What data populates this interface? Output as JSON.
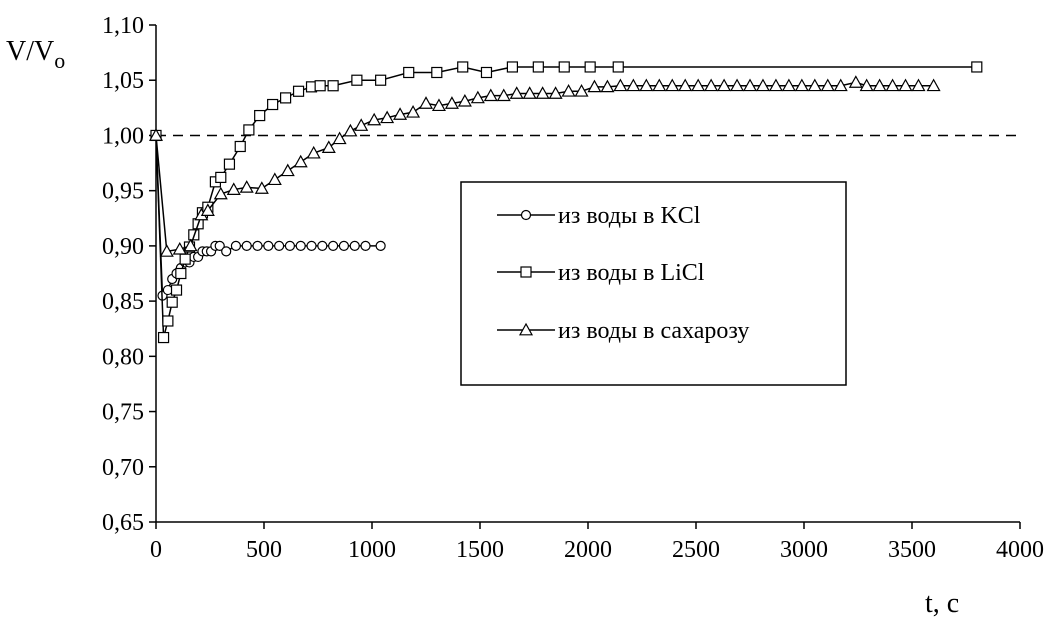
{
  "chart_data": {
    "type": "line",
    "xlabel": "t, c",
    "ylabel_main": "V/V",
    "ylabel_sub": "o",
    "xlim": [
      0,
      4000
    ],
    "ylim": [
      0.65,
      1.1
    ],
    "x_ticks": [
      0,
      500,
      1000,
      1500,
      2000,
      2500,
      3000,
      3500,
      4000
    ],
    "x_tick_labels": [
      "0",
      "500",
      "1000",
      "1500",
      "2000",
      "2500",
      "3000",
      "3500",
      "4000"
    ],
    "y_ticks": [
      0.65,
      0.7,
      0.75,
      0.8,
      0.85,
      0.9,
      0.95,
      1.0,
      1.05,
      1.1
    ],
    "y_tick_labels": [
      "0,65",
      "0,70",
      "0,75",
      "0,80",
      "0,85",
      "0,90",
      "0,95",
      "1,00",
      "1,05",
      "1,10"
    ],
    "reference_line": {
      "y": 1.0,
      "style": "dashed"
    },
    "legend_position": "center-right",
    "series": [
      {
        "name": "из воды в KCl",
        "marker": "circle",
        "points": [
          [
            0,
            1.0
          ],
          [
            30,
            0.855
          ],
          [
            55,
            0.86
          ],
          [
            75,
            0.87
          ],
          [
            95,
            0.875
          ],
          [
            115,
            0.88
          ],
          [
            135,
            0.885
          ],
          [
            155,
            0.885
          ],
          [
            175,
            0.89
          ],
          [
            195,
            0.89
          ],
          [
            215,
            0.895
          ],
          [
            235,
            0.895
          ],
          [
            255,
            0.895
          ],
          [
            275,
            0.9
          ],
          [
            295,
            0.9
          ],
          [
            325,
            0.895
          ],
          [
            370,
            0.9
          ],
          [
            420,
            0.9
          ],
          [
            470,
            0.9
          ],
          [
            520,
            0.9
          ],
          [
            570,
            0.9
          ],
          [
            620,
            0.9
          ],
          [
            670,
            0.9
          ],
          [
            720,
            0.9
          ],
          [
            770,
            0.9
          ],
          [
            820,
            0.9
          ],
          [
            870,
            0.9
          ],
          [
            920,
            0.9
          ],
          [
            970,
            0.9
          ],
          [
            1040,
            0.9
          ]
        ]
      },
      {
        "name": "из воды в LiCl",
        "marker": "square",
        "points": [
          [
            0,
            1.0
          ],
          [
            35,
            0.817
          ],
          [
            55,
            0.832
          ],
          [
            75,
            0.849
          ],
          [
            95,
            0.86
          ],
          [
            115,
            0.875
          ],
          [
            135,
            0.888
          ],
          [
            155,
            0.899
          ],
          [
            175,
            0.91
          ],
          [
            195,
            0.92
          ],
          [
            215,
            0.93
          ],
          [
            240,
            0.935
          ],
          [
            275,
            0.958
          ],
          [
            300,
            0.962
          ],
          [
            340,
            0.974
          ],
          [
            390,
            0.99
          ],
          [
            430,
            1.005
          ],
          [
            480,
            1.018
          ],
          [
            540,
            1.028
          ],
          [
            600,
            1.034
          ],
          [
            660,
            1.04
          ],
          [
            720,
            1.044
          ],
          [
            760,
            1.045
          ],
          [
            820,
            1.045
          ],
          [
            930,
            1.05
          ],
          [
            1040,
            1.05
          ],
          [
            1170,
            1.057
          ],
          [
            1300,
            1.057
          ],
          [
            1420,
            1.062
          ],
          [
            1530,
            1.057
          ],
          [
            1650,
            1.062
          ],
          [
            1770,
            1.062
          ],
          [
            1890,
            1.062
          ],
          [
            2010,
            1.062
          ],
          [
            2140,
            1.062
          ],
          [
            3800,
            1.062
          ]
        ]
      },
      {
        "name": "из воды в сахарозу",
        "marker": "triangle",
        "points": [
          [
            0,
            1.0
          ],
          [
            50,
            0.895
          ],
          [
            110,
            0.897
          ],
          [
            160,
            0.9
          ],
          [
            210,
            0.928
          ],
          [
            240,
            0.932
          ],
          [
            300,
            0.947
          ],
          [
            360,
            0.951
          ],
          [
            420,
            0.953
          ],
          [
            490,
            0.952
          ],
          [
            550,
            0.96
          ],
          [
            610,
            0.968
          ],
          [
            670,
            0.976
          ],
          [
            730,
            0.984
          ],
          [
            800,
            0.989
          ],
          [
            850,
            0.997
          ],
          [
            900,
            1.004
          ],
          [
            950,
            1.009
          ],
          [
            1010,
            1.014
          ],
          [
            1070,
            1.016
          ],
          [
            1130,
            1.019
          ],
          [
            1190,
            1.021
          ],
          [
            1250,
            1.029
          ],
          [
            1310,
            1.027
          ],
          [
            1370,
            1.029
          ],
          [
            1430,
            1.031
          ],
          [
            1490,
            1.034
          ],
          [
            1550,
            1.036
          ],
          [
            1610,
            1.036
          ],
          [
            1670,
            1.038
          ],
          [
            1730,
            1.038
          ],
          [
            1790,
            1.038
          ],
          [
            1850,
            1.038
          ],
          [
            1910,
            1.04
          ],
          [
            1970,
            1.04
          ],
          [
            2030,
            1.044
          ],
          [
            2090,
            1.044
          ],
          [
            2150,
            1.045
          ],
          [
            2210,
            1.045
          ],
          [
            2270,
            1.045
          ],
          [
            2330,
            1.045
          ],
          [
            2390,
            1.045
          ],
          [
            2450,
            1.045
          ],
          [
            2510,
            1.045
          ],
          [
            2570,
            1.045
          ],
          [
            2630,
            1.045
          ],
          [
            2690,
            1.045
          ],
          [
            2750,
            1.045
          ],
          [
            2810,
            1.045
          ],
          [
            2870,
            1.045
          ],
          [
            2930,
            1.045
          ],
          [
            2990,
            1.045
          ],
          [
            3050,
            1.045
          ],
          [
            3110,
            1.045
          ],
          [
            3170,
            1.045
          ],
          [
            3240,
            1.048
          ],
          [
            3290,
            1.045
          ],
          [
            3350,
            1.045
          ],
          [
            3410,
            1.045
          ],
          [
            3470,
            1.045
          ],
          [
            3530,
            1.045
          ],
          [
            3600,
            1.045
          ]
        ]
      }
    ]
  }
}
